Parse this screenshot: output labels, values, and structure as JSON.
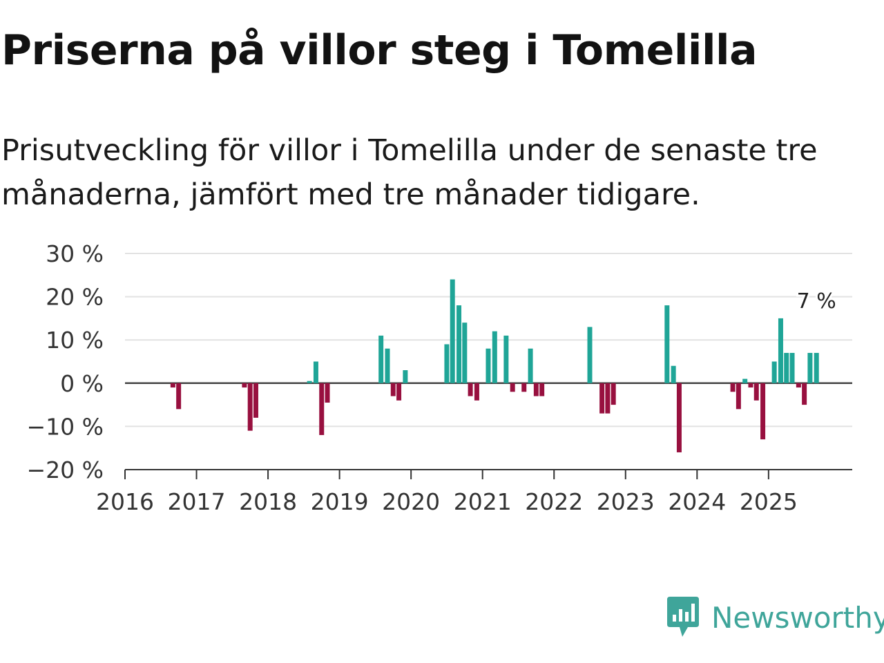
{
  "title": "Priserna på villor steg i Tomelilla",
  "subtitle": "Prisutveckling för villor i Tomelilla under de senaste tre månaderna, jämfört med tre månader tidigare.",
  "brand": "Newsworthy",
  "colors": {
    "positive": "#1fa597",
    "negative": "#98103f",
    "grid": "#e2e2e2",
    "zero": "#444444",
    "brand": "#3fa59a"
  },
  "chart_data": {
    "type": "bar",
    "title": "Priserna på villor steg i Tomelilla",
    "xlabel": "",
    "ylabel": "",
    "ylim": [
      -20,
      30
    ],
    "x_range": [
      2016,
      2026.17
    ],
    "yticks": [
      30,
      20,
      10,
      0,
      -10,
      -20
    ],
    "ytick_labels": [
      "30 %",
      "20 %",
      "10 %",
      "0 %",
      "−10 %",
      "−20 %"
    ],
    "xtick_labels": [
      "2016",
      "2017",
      "2018",
      "2019",
      "2020",
      "2021",
      "2022",
      "2023",
      "2024",
      "2025"
    ],
    "annotation": {
      "label": "7 %",
      "x": 2025.67,
      "y": 7
    },
    "series": [
      {
        "name": "Prisutveckling",
        "points": [
          {
            "x": 2016.67,
            "y": -1
          },
          {
            "x": 2016.75,
            "y": -6
          },
          {
            "x": 2017.67,
            "y": -1
          },
          {
            "x": 2017.75,
            "y": -11
          },
          {
            "x": 2017.83,
            "y": -8
          },
          {
            "x": 2018.58,
            "y": 0.5
          },
          {
            "x": 2018.67,
            "y": 5
          },
          {
            "x": 2018.75,
            "y": -12
          },
          {
            "x": 2018.83,
            "y": -4.5
          },
          {
            "x": 2019.58,
            "y": 11
          },
          {
            "x": 2019.67,
            "y": 8
          },
          {
            "x": 2019.75,
            "y": -3
          },
          {
            "x": 2019.83,
            "y": -4
          },
          {
            "x": 2019.92,
            "y": 3
          },
          {
            "x": 2020.5,
            "y": 9
          },
          {
            "x": 2020.58,
            "y": 24
          },
          {
            "x": 2020.67,
            "y": 18
          },
          {
            "x": 2020.75,
            "y": 14
          },
          {
            "x": 2020.83,
            "y": -3
          },
          {
            "x": 2020.92,
            "y": -4
          },
          {
            "x": 2021.08,
            "y": 8
          },
          {
            "x": 2021.17,
            "y": 12
          },
          {
            "x": 2021.33,
            "y": 11
          },
          {
            "x": 2021.42,
            "y": -2
          },
          {
            "x": 2021.58,
            "y": -2
          },
          {
            "x": 2021.67,
            "y": 8
          },
          {
            "x": 2021.75,
            "y": -3
          },
          {
            "x": 2021.83,
            "y": -3
          },
          {
            "x": 2022.5,
            "y": 13
          },
          {
            "x": 2022.67,
            "y": -7
          },
          {
            "x": 2022.75,
            "y": -7
          },
          {
            "x": 2022.83,
            "y": -5
          },
          {
            "x": 2023.58,
            "y": 18
          },
          {
            "x": 2023.67,
            "y": 4
          },
          {
            "x": 2023.75,
            "y": -16
          },
          {
            "x": 2024.5,
            "y": -2
          },
          {
            "x": 2024.58,
            "y": -6
          },
          {
            "x": 2024.67,
            "y": 1
          },
          {
            "x": 2024.75,
            "y": -1
          },
          {
            "x": 2024.83,
            "y": -4
          },
          {
            "x": 2024.92,
            "y": -13
          },
          {
            "x": 2025.08,
            "y": 5
          },
          {
            "x": 2025.17,
            "y": 15
          },
          {
            "x": 2025.25,
            "y": 7
          },
          {
            "x": 2025.33,
            "y": 7
          },
          {
            "x": 2025.42,
            "y": -1
          },
          {
            "x": 2025.5,
            "y": -5
          },
          {
            "x": 2025.58,
            "y": 7
          },
          {
            "x": 2025.67,
            "y": 7
          }
        ]
      }
    ]
  }
}
